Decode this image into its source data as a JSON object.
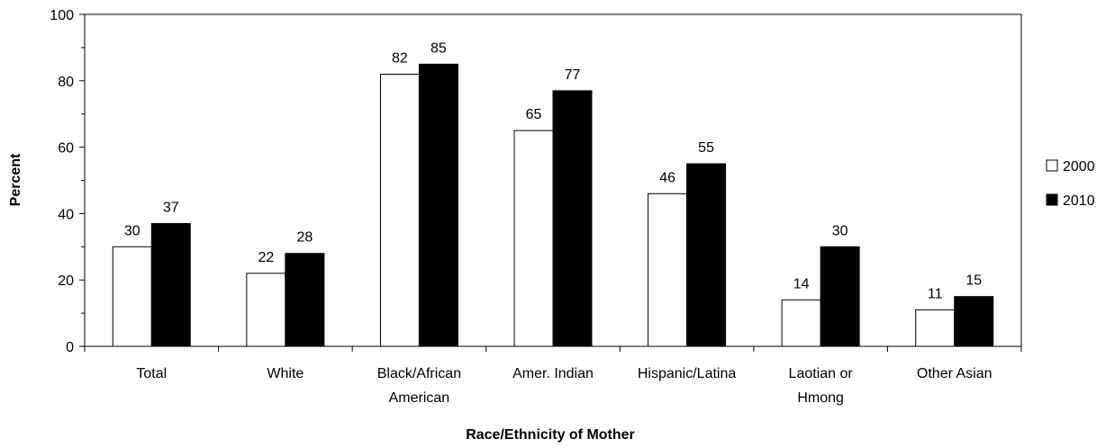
{
  "chart_data": {
    "type": "bar",
    "title": "",
    "xlabel": "Race/Ethnicity of Mother",
    "ylabel": "Percent",
    "ylim": [
      0,
      100
    ],
    "yticks": [
      0,
      20,
      40,
      60,
      80,
      100
    ],
    "categories": [
      [
        "Total"
      ],
      [
        "White"
      ],
      [
        "Black/African",
        "American"
      ],
      [
        "Amer. Indian"
      ],
      [
        "Hispanic/Latina"
      ],
      [
        "Laotian or",
        "Hmong"
      ],
      [
        "Other Asian"
      ]
    ],
    "series": [
      {
        "name": "2000",
        "color": "#ffffff",
        "values": [
          30,
          22,
          82,
          65,
          46,
          14,
          11
        ]
      },
      {
        "name": "2010",
        "color": "#000000",
        "values": [
          37,
          28,
          85,
          77,
          55,
          30,
          15
        ]
      }
    ],
    "legend": "right",
    "grid": false
  }
}
